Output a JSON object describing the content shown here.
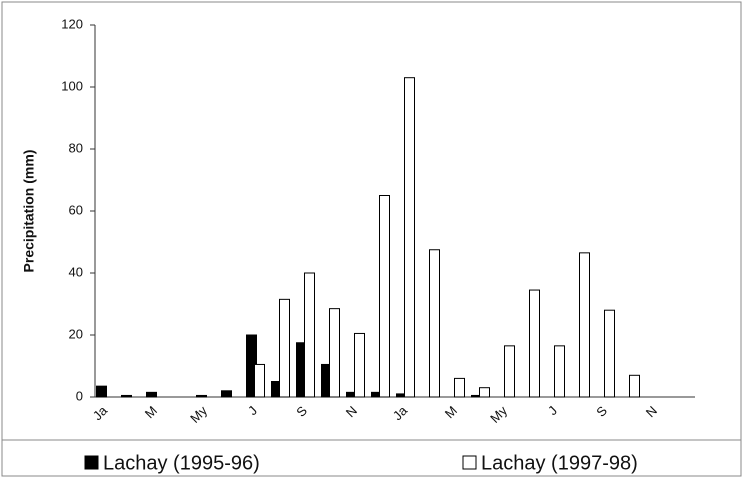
{
  "chart_data": {
    "type": "bar",
    "ylabel": "Precipitation (mm)",
    "categories": [
      "Ja",
      null,
      "M",
      null,
      "My",
      null,
      "J",
      null,
      "S",
      null,
      "N",
      null,
      "Ja",
      null,
      "M",
      null,
      "My",
      null,
      "J",
      null,
      "S",
      null,
      "N",
      null
    ],
    "series": [
      {
        "name": "Lachay (1995-96)",
        "color": "#000000",
        "values": [
          3.5,
          0.5,
          1.5,
          null,
          0.5,
          2,
          20,
          5,
          17.5,
          10.5,
          1.5,
          1.5,
          1,
          null,
          null,
          0.5,
          null,
          null,
          null,
          null,
          null,
          null,
          null,
          null
        ]
      },
      {
        "name": "Lachay (1997-98)",
        "color": "#ffffff",
        "values": [
          null,
          null,
          null,
          null,
          null,
          null,
          10.5,
          31.5,
          40,
          28.5,
          20.5,
          65,
          103,
          47.5,
          6,
          3,
          16.5,
          34.5,
          16.5,
          46.5,
          28,
          7,
          null,
          null
        ]
      }
    ],
    "ylim": [
      0,
      120
    ],
    "yticks": [
      0,
      20,
      40,
      60,
      80,
      100,
      120
    ]
  }
}
